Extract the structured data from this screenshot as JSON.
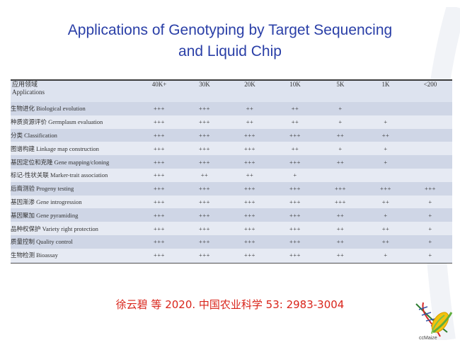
{
  "title": {
    "line1": "Applications of Genotyping by Target Sequencing",
    "line2": "and Liquid Chip"
  },
  "table": {
    "header_cn": "应用领域",
    "header_en": "Applications",
    "columns": [
      "40K+",
      "30K",
      "20K",
      "10K",
      "5K",
      "1K",
      "<200"
    ],
    "rows": [
      {
        "label": "生物进化 Biological evolution",
        "values": [
          "+++",
          "+++",
          "++",
          "++",
          "+",
          "",
          ""
        ]
      },
      {
        "label": "种质资源评价 Germplasm evaluation",
        "values": [
          "+++",
          "+++",
          "++",
          "++",
          "+",
          "+",
          ""
        ]
      },
      {
        "label": "分类 Classification",
        "values": [
          "+++",
          "+++",
          "+++",
          "+++",
          "++",
          "++",
          ""
        ]
      },
      {
        "label": "图谱构建 Linkage map construction",
        "values": [
          "+++",
          "+++",
          "+++",
          "++",
          "+",
          "+",
          ""
        ]
      },
      {
        "label": "基因定位和克隆 Gene mapping/cloning",
        "values": [
          "+++",
          "+++",
          "+++",
          "+++",
          "++",
          "+",
          ""
        ]
      },
      {
        "label": "标记-性状关联 Marker-trait association",
        "values": [
          "+++",
          "++",
          "++",
          "+",
          "",
          "",
          ""
        ]
      },
      {
        "label": "后裔测验 Progeny testing",
        "values": [
          "+++",
          "+++",
          "+++",
          "+++",
          "+++",
          "+++",
          "+++"
        ]
      },
      {
        "label": "基因渐渗 Gene introgression",
        "values": [
          "+++",
          "+++",
          "+++",
          "+++",
          "+++",
          "++",
          "+"
        ]
      },
      {
        "label": "基因聚加 Gene pyramiding",
        "values": [
          "+++",
          "+++",
          "+++",
          "+++",
          "++",
          "+",
          "+"
        ]
      },
      {
        "label": "品种权保护 Variety right protection",
        "values": [
          "+++",
          "+++",
          "+++",
          "+++",
          "++",
          "++",
          "+"
        ]
      },
      {
        "label": "质量控制 Quality control",
        "values": [
          "+++",
          "+++",
          "+++",
          "+++",
          "++",
          "++",
          "+"
        ]
      },
      {
        "label": "生物检测 Bioassay",
        "values": [
          "+++",
          "+++",
          "+++",
          "+++",
          "++",
          "+",
          "+"
        ]
      }
    ]
  },
  "citation": "徐云碧 等 2020. 中国农业科学 53: 2983-3004",
  "logo": {
    "text": "ccMaize",
    "icon": "maize-dna-logo-icon"
  },
  "colors": {
    "title": "#2a3fa7",
    "citation": "#d9241a",
    "row_dark": "#cfd6e6",
    "row_light": "#e6eaf3"
  }
}
